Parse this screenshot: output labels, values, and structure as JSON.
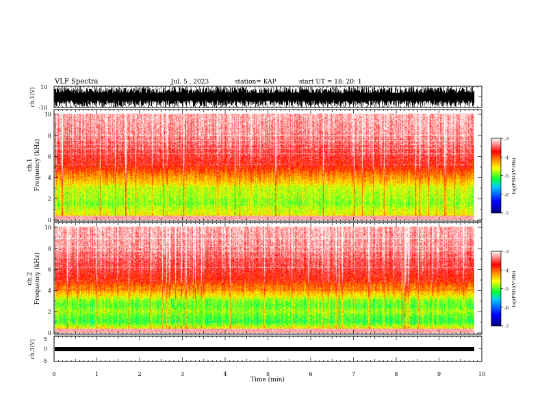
{
  "header": {
    "title": "VLF Spectra",
    "date": "Jul. 5 , 2023",
    "station": "station= KAP",
    "start": "start UT = 18: 20: 1"
  },
  "chart_data": [
    {
      "type": "line",
      "name": "ch1-waveform",
      "ylabel": "ch.1(V)",
      "ylim": [
        -10,
        10
      ],
      "yticks": [
        "10",
        "-10"
      ],
      "xlim": [
        0,
        10
      ],
      "description_level": "dense noise waveform roughly spanning +/-10 V"
    },
    {
      "type": "heatmap",
      "name": "ch1-spectrogram",
      "ylabel": "ch.1\nFrequency (kHz)",
      "ylabel_lines": [
        "ch.1",
        "Frequency (kHz)"
      ],
      "ylim": [
        0,
        10
      ],
      "yticks": [
        "0",
        "2",
        "4",
        "6",
        "8",
        "10"
      ],
      "xlim": [
        0,
        9.8
      ],
      "colorbar": {
        "label": "log(PSD)(V²/Hz)",
        "range": [
          -7,
          -3
        ],
        "ticks": [
          "-3",
          "-4",
          "-5",
          "-6",
          "-7"
        ]
      },
      "profile_kHz": [
        [
          0,
          -4.3
        ],
        [
          0.5,
          -4.6
        ],
        [
          1,
          -4.7
        ],
        [
          1.5,
          -4.9
        ],
        [
          2,
          -4.8
        ],
        [
          2.5,
          -4.75
        ],
        [
          3,
          -4.7
        ],
        [
          3.5,
          -4.4
        ],
        [
          4,
          -4.2
        ],
        [
          4.5,
          -4.0
        ],
        [
          5,
          -3.75
        ],
        [
          6,
          -3.55
        ],
        [
          7,
          -3.45
        ],
        [
          8,
          -3.3
        ],
        [
          10,
          -3.2
        ]
      ]
    },
    {
      "type": "heatmap",
      "name": "ch2-spectrogram",
      "ylabel": "ch.2\nFrequency (kHz)",
      "ylabel_lines": [
        "ch.2",
        "Frequency (kHz)"
      ],
      "ylim": [
        0,
        10
      ],
      "yticks": [
        "0",
        "2",
        "4",
        "6",
        "8",
        "10"
      ],
      "xlim": [
        0,
        9.8
      ],
      "colorbar": {
        "label": "log(PSD)(V²/Hz)",
        "range": [
          -7,
          -3
        ],
        "ticks": [
          "-3",
          "-4",
          "-5",
          "-6",
          "-7"
        ]
      },
      "profile_kHz": [
        [
          0,
          -4.3
        ],
        [
          0.5,
          -4.7
        ],
        [
          1,
          -5.1
        ],
        [
          1.5,
          -5.0
        ],
        [
          2,
          -4.8
        ],
        [
          2.5,
          -5.0
        ],
        [
          3,
          -4.9
        ],
        [
          3.5,
          -4.5
        ],
        [
          4,
          -4.2
        ],
        [
          4.5,
          -4.0
        ],
        [
          5,
          -3.75
        ],
        [
          6,
          -3.55
        ],
        [
          7,
          -3.45
        ],
        [
          8,
          -3.3
        ],
        [
          10,
          -3.2
        ]
      ]
    },
    {
      "type": "line",
      "name": "ch3-waveform",
      "ylabel": "ch.3(V)",
      "ylim": [
        -5,
        5
      ],
      "yticks": [
        "5",
        "0",
        "-5"
      ],
      "xlim": [
        0,
        10
      ],
      "xlabel": "Time (min)",
      "xticks": [
        "0",
        "1",
        "2",
        "3",
        "4",
        "5",
        "6",
        "7",
        "8",
        "9",
        "10"
      ],
      "description_level": "near-constant band around -1 V"
    }
  ],
  "colors": {
    "waveform": "#000000",
    "colormap": [
      "#000080",
      "#0000ff",
      "#00c8ff",
      "#00ff40",
      "#ffff00",
      "#ff8000",
      "#ff0000",
      "#ffffff"
    ]
  }
}
